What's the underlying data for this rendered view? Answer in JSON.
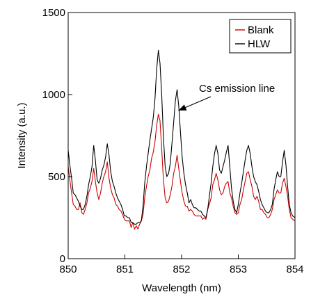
{
  "chart_data": {
    "type": "line",
    "xlabel": "Wavelength (nm)",
    "ylabel": "Intensity (a.u.)",
    "xlim": [
      850,
      854
    ],
    "ylim": [
      0,
      1500
    ],
    "x_ticks": [
      "850",
      "851",
      "852",
      "853",
      "854"
    ],
    "y_ticks": [
      "0",
      "500",
      "1000",
      "1500"
    ],
    "grid": false,
    "legend_position": "top-right",
    "annotation": {
      "text": "Cs emission line",
      "target_x": 851.92,
      "target_y": 920
    },
    "colors": {
      "Blank": "#cc0000",
      "HLW": "#000000"
    },
    "series": [
      {
        "name": "Blank",
        "points": [
          [
            850.0,
            560
          ],
          [
            850.03,
            480
          ],
          [
            850.06,
            400
          ],
          [
            850.09,
            330
          ],
          [
            850.12,
            320
          ],
          [
            850.15,
            300
          ],
          [
            850.18,
            300
          ],
          [
            850.21,
            340
          ],
          [
            850.24,
            280
          ],
          [
            850.27,
            270
          ],
          [
            850.3,
            300
          ],
          [
            850.33,
            340
          ],
          [
            850.36,
            400
          ],
          [
            850.39,
            430
          ],
          [
            850.42,
            470
          ],
          [
            850.45,
            550
          ],
          [
            850.48,
            470
          ],
          [
            850.51,
            400
          ],
          [
            850.54,
            360
          ],
          [
            850.57,
            400
          ],
          [
            850.6,
            460
          ],
          [
            850.63,
            500
          ],
          [
            850.66,
            530
          ],
          [
            850.69,
            590
          ],
          [
            850.72,
            490
          ],
          [
            850.75,
            430
          ],
          [
            850.78,
            390
          ],
          [
            850.81,
            370
          ],
          [
            850.84,
            330
          ],
          [
            850.87,
            320
          ],
          [
            850.9,
            300
          ],
          [
            850.93,
            290
          ],
          [
            850.96,
            270
          ],
          [
            850.99,
            240
          ],
          [
            851.02,
            230
          ],
          [
            851.05,
            230
          ],
          [
            851.08,
            230
          ],
          [
            851.11,
            190
          ],
          [
            851.14,
            220
          ],
          [
            851.17,
            180
          ],
          [
            851.2,
            200
          ],
          [
            851.23,
            180
          ],
          [
            851.26,
            210
          ],
          [
            851.29,
            230
          ],
          [
            851.32,
            270
          ],
          [
            851.35,
            370
          ],
          [
            851.38,
            440
          ],
          [
            851.41,
            500
          ],
          [
            851.44,
            540
          ],
          [
            851.47,
            610
          ],
          [
            851.5,
            650
          ],
          [
            851.53,
            710
          ],
          [
            851.56,
            810
          ],
          [
            851.59,
            880
          ],
          [
            851.62,
            840
          ],
          [
            851.65,
            660
          ],
          [
            851.68,
            480
          ],
          [
            851.71,
            370
          ],
          [
            851.74,
            340
          ],
          [
            851.77,
            350
          ],
          [
            851.8,
            390
          ],
          [
            851.83,
            440
          ],
          [
            851.86,
            520
          ],
          [
            851.89,
            560
          ],
          [
            851.92,
            630
          ],
          [
            851.95,
            550
          ],
          [
            851.98,
            470
          ],
          [
            852.01,
            400
          ],
          [
            852.04,
            350
          ],
          [
            852.07,
            320
          ],
          [
            852.1,
            320
          ],
          [
            852.13,
            290
          ],
          [
            852.16,
            300
          ],
          [
            852.19,
            290
          ],
          [
            852.22,
            270
          ],
          [
            852.25,
            260
          ],
          [
            852.28,
            260
          ],
          [
            852.31,
            260
          ],
          [
            852.34,
            260
          ],
          [
            852.37,
            240
          ],
          [
            852.4,
            250
          ],
          [
            852.43,
            240
          ],
          [
            852.46,
            300
          ],
          [
            852.49,
            330
          ],
          [
            852.52,
            370
          ],
          [
            852.55,
            450
          ],
          [
            852.58,
            480
          ],
          [
            852.61,
            520
          ],
          [
            852.64,
            480
          ],
          [
            852.67,
            420
          ],
          [
            852.7,
            390
          ],
          [
            852.73,
            400
          ],
          [
            852.76,
            440
          ],
          [
            852.79,
            460
          ],
          [
            852.82,
            470
          ],
          [
            852.85,
            400
          ],
          [
            852.88,
            370
          ],
          [
            852.91,
            320
          ],
          [
            852.94,
            280
          ],
          [
            852.97,
            270
          ],
          [
            853.0,
            280
          ],
          [
            853.03,
            330
          ],
          [
            853.06,
            360
          ],
          [
            853.09,
            420
          ],
          [
            853.12,
            470
          ],
          [
            853.15,
            520
          ],
          [
            853.18,
            530
          ],
          [
            853.21,
            480
          ],
          [
            853.24,
            440
          ],
          [
            853.27,
            380
          ],
          [
            853.3,
            360
          ],
          [
            853.33,
            380
          ],
          [
            853.36,
            350
          ],
          [
            853.39,
            300
          ],
          [
            853.42,
            300
          ],
          [
            853.45,
            280
          ],
          [
            853.48,
            270
          ],
          [
            853.51,
            250
          ],
          [
            853.54,
            250
          ],
          [
            853.57,
            270
          ],
          [
            853.6,
            300
          ],
          [
            853.63,
            360
          ],
          [
            853.66,
            390
          ],
          [
            853.69,
            420
          ],
          [
            853.72,
            400
          ],
          [
            853.75,
            400
          ],
          [
            853.78,
            460
          ],
          [
            853.81,
            490
          ],
          [
            853.84,
            440
          ],
          [
            853.87,
            380
          ],
          [
            853.9,
            300
          ],
          [
            853.93,
            250
          ],
          [
            853.96,
            240
          ],
          [
            854.0,
            230
          ]
        ]
      },
      {
        "name": "HLW",
        "points": [
          [
            850.0,
            660
          ],
          [
            850.03,
            570
          ],
          [
            850.06,
            490
          ],
          [
            850.09,
            400
          ],
          [
            850.12,
            390
          ],
          [
            850.15,
            370
          ],
          [
            850.18,
            350
          ],
          [
            850.21,
            320
          ],
          [
            850.24,
            300
          ],
          [
            850.27,
            300
          ],
          [
            850.3,
            330
          ],
          [
            850.33,
            380
          ],
          [
            850.36,
            450
          ],
          [
            850.39,
            500
          ],
          [
            850.42,
            560
          ],
          [
            850.45,
            690
          ],
          [
            850.48,
            600
          ],
          [
            850.51,
            480
          ],
          [
            850.54,
            460
          ],
          [
            850.57,
            490
          ],
          [
            850.6,
            540
          ],
          [
            850.63,
            570
          ],
          [
            850.66,
            620
          ],
          [
            850.69,
            700
          ],
          [
            850.72,
            630
          ],
          [
            850.75,
            530
          ],
          [
            850.78,
            470
          ],
          [
            850.81,
            440
          ],
          [
            850.84,
            400
          ],
          [
            850.87,
            370
          ],
          [
            850.9,
            350
          ],
          [
            850.93,
            330
          ],
          [
            850.96,
            300
          ],
          [
            850.99,
            260
          ],
          [
            851.02,
            260
          ],
          [
            851.05,
            250
          ],
          [
            851.08,
            250
          ],
          [
            851.11,
            220
          ],
          [
            851.14,
            220
          ],
          [
            851.17,
            210
          ],
          [
            851.2,
            210
          ],
          [
            851.23,
            220
          ],
          [
            851.26,
            220
          ],
          [
            851.29,
            230
          ],
          [
            851.32,
            320
          ],
          [
            851.35,
            460
          ],
          [
            851.38,
            560
          ],
          [
            851.41,
            640
          ],
          [
            851.44,
            720
          ],
          [
            851.47,
            790
          ],
          [
            851.5,
            860
          ],
          [
            851.53,
            970
          ],
          [
            851.56,
            1150
          ],
          [
            851.59,
            1270
          ],
          [
            851.62,
            1190
          ],
          [
            851.65,
            990
          ],
          [
            851.68,
            740
          ],
          [
            851.71,
            560
          ],
          [
            851.74,
            500
          ],
          [
            851.77,
            520
          ],
          [
            851.8,
            580
          ],
          [
            851.83,
            700
          ],
          [
            851.86,
            830
          ],
          [
            851.89,
            960
          ],
          [
            851.92,
            1030
          ],
          [
            851.95,
            930
          ],
          [
            851.98,
            770
          ],
          [
            852.01,
            620
          ],
          [
            852.04,
            520
          ],
          [
            852.07,
            450
          ],
          [
            852.1,
            400
          ],
          [
            852.13,
            340
          ],
          [
            852.16,
            360
          ],
          [
            852.19,
            330
          ],
          [
            852.22,
            310
          ],
          [
            852.25,
            310
          ],
          [
            852.28,
            300
          ],
          [
            852.31,
            290
          ],
          [
            852.34,
            290
          ],
          [
            852.37,
            270
          ],
          [
            852.4,
            260
          ],
          [
            852.43,
            250
          ],
          [
            852.46,
            300
          ],
          [
            852.49,
            380
          ],
          [
            852.52,
            460
          ],
          [
            852.55,
            560
          ],
          [
            852.58,
            640
          ],
          [
            852.61,
            690
          ],
          [
            852.64,
            640
          ],
          [
            852.67,
            540
          ],
          [
            852.7,
            520
          ],
          [
            852.73,
            560
          ],
          [
            852.76,
            600
          ],
          [
            852.79,
            650
          ],
          [
            852.82,
            690
          ],
          [
            852.85,
            560
          ],
          [
            852.88,
            430
          ],
          [
            852.91,
            350
          ],
          [
            852.94,
            300
          ],
          [
            852.97,
            280
          ],
          [
            853.0,
            330
          ],
          [
            853.03,
            400
          ],
          [
            853.06,
            460
          ],
          [
            853.09,
            530
          ],
          [
            853.12,
            600
          ],
          [
            853.15,
            660
          ],
          [
            853.18,
            690
          ],
          [
            853.21,
            640
          ],
          [
            853.24,
            560
          ],
          [
            853.27,
            500
          ],
          [
            853.3,
            470
          ],
          [
            853.33,
            450
          ],
          [
            853.36,
            410
          ],
          [
            853.39,
            360
          ],
          [
            853.42,
            330
          ],
          [
            853.45,
            310
          ],
          [
            853.48,
            290
          ],
          [
            853.51,
            280
          ],
          [
            853.54,
            280
          ],
          [
            853.57,
            300
          ],
          [
            853.6,
            330
          ],
          [
            853.63,
            420
          ],
          [
            853.66,
            480
          ],
          [
            853.69,
            530
          ],
          [
            853.72,
            500
          ],
          [
            853.75,
            500
          ],
          [
            853.78,
            590
          ],
          [
            853.81,
            660
          ],
          [
            853.84,
            570
          ],
          [
            853.87,
            440
          ],
          [
            853.9,
            330
          ],
          [
            853.93,
            280
          ],
          [
            853.96,
            260
          ],
          [
            854.0,
            250
          ]
        ]
      }
    ]
  }
}
